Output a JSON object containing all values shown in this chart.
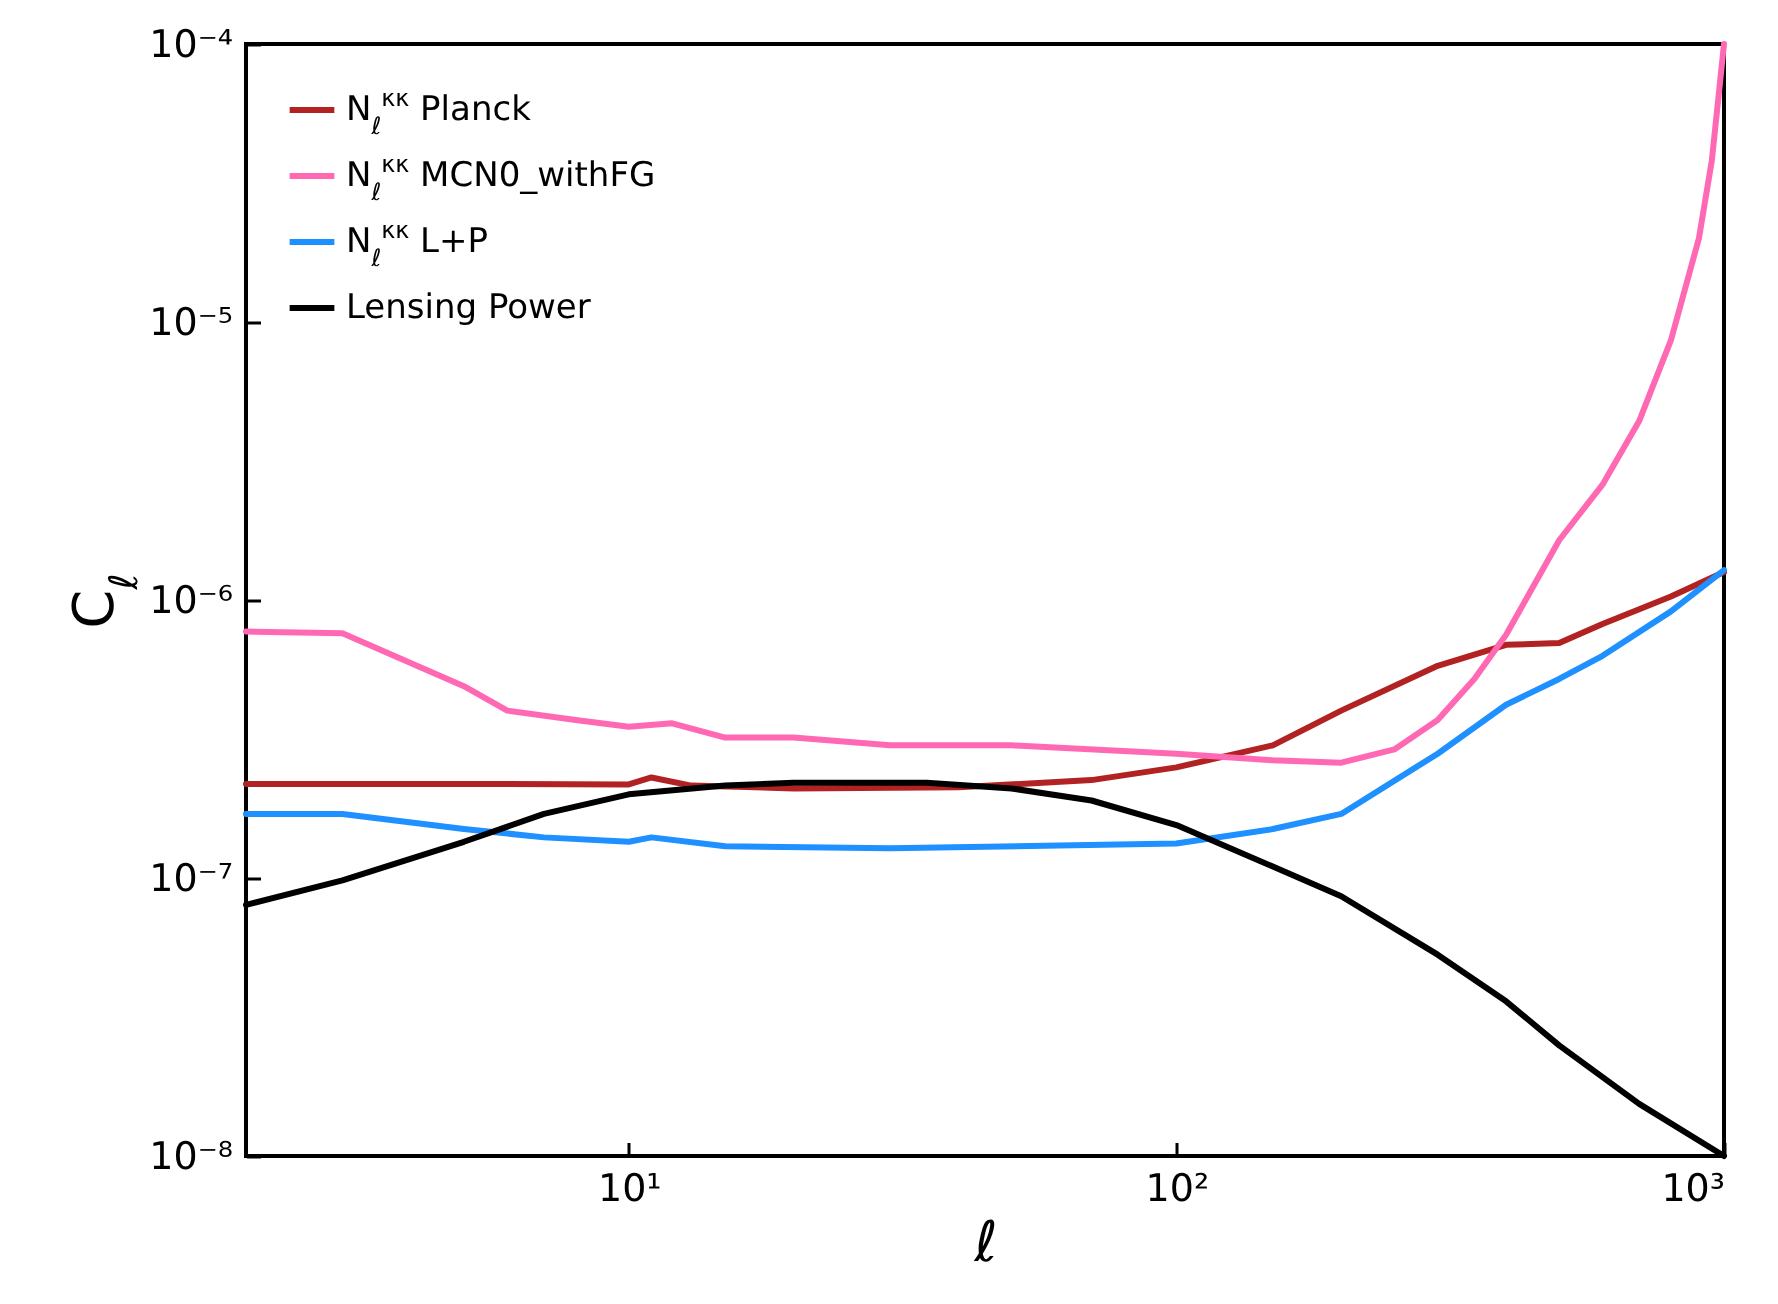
{
  "chart_data": {
    "type": "line",
    "xlabel": "ℓ",
    "ylabel": "C$_{ℓ}$",
    "log": "xy",
    "grid": false,
    "legend": "top left",
    "marker": "none",
    "line_style": "solid",
    "xlim": [
      2,
      1000
    ],
    "ylim": [
      1e-08,
      0.0001
    ],
    "xticks": [
      {
        "value": 10,
        "label": "10¹"
      },
      {
        "value": 100,
        "label": "10²"
      },
      {
        "value": 1000,
        "label": "10³"
      }
    ],
    "yticks": [
      {
        "value": 1e-08,
        "label": "10⁻⁸"
      },
      {
        "value": 1e-07,
        "label": "10⁻⁷"
      },
      {
        "value": 1e-06,
        "label": "10⁻⁶"
      },
      {
        "value": 1e-05,
        "label": "10⁻⁵"
      },
      {
        "value": 0.0001,
        "label": "10⁻⁴"
      }
    ],
    "series": [
      {
        "name": "N$_{ℓ}$$^{κκ}$ Planck",
        "color": "#b22222",
        "x": [
          2,
          5,
          10,
          11,
          13,
          20,
          40,
          70,
          100,
          150,
          200,
          300,
          400,
          500,
          600,
          800,
          1000
        ],
        "values": [
          2.18e-07,
          2.18e-07,
          2.17e-07,
          2.3e-07,
          2.15e-07,
          2.1e-07,
          2.12e-07,
          2.25e-07,
          2.5e-07,
          3e-07,
          4e-07,
          5.8e-07,
          6.9e-07,
          7e-07,
          8.2e-07,
          1.03e-06,
          1.26e-06
        ]
      },
      {
        "name": "N$_{ℓ}$$^{κκ}$ MCN0_withFG",
        "color": "#ff69b4",
        "x": [
          2,
          3,
          5,
          6,
          8,
          10,
          12,
          15,
          20,
          30,
          50,
          100,
          150,
          200,
          250,
          300,
          350,
          400,
          500,
          600,
          700,
          800,
          900,
          950,
          1000
        ],
        "values": [
          7.7e-07,
          7.6e-07,
          4.9e-07,
          4e-07,
          3.7e-07,
          3.5e-07,
          3.6e-07,
          3.2e-07,
          3.2e-07,
          3e-07,
          3e-07,
          2.8e-07,
          2.65e-07,
          2.6e-07,
          2.9e-07,
          3.7e-07,
          5.2e-07,
          7.5e-07,
          1.64e-06,
          2.6e-06,
          4.4e-06,
          8.6e-06,
          2e-05,
          3.8e-05,
          0.0001
        ]
      },
      {
        "name": "N$_{ℓ}$$^{κκ}$ L+P",
        "color": "#1e90ff",
        "x": [
          2,
          3,
          5,
          7,
          10,
          11,
          15,
          30,
          100,
          150,
          200,
          300,
          400,
          500,
          600,
          800,
          1000
        ],
        "values": [
          1.7e-07,
          1.7e-07,
          1.5e-07,
          1.4e-07,
          1.35e-07,
          1.4e-07,
          1.3e-07,
          1.28e-07,
          1.33e-07,
          1.5e-07,
          1.7e-07,
          2.8e-07,
          4.2e-07,
          5.2e-07,
          6.3e-07,
          9.1e-07,
          1.28e-06
        ]
      },
      {
        "name": "Lensing Power",
        "color": "#000000",
        "x": [
          2,
          3,
          5,
          7,
          10,
          15,
          20,
          35,
          50,
          70,
          100,
          150,
          200,
          300,
          400,
          500,
          700,
          1000
        ],
        "values": [
          8e-08,
          9.8e-08,
          1.35e-07,
          1.7e-07,
          2e-07,
          2.15e-07,
          2.2e-07,
          2.2e-07,
          2.1e-07,
          1.9e-07,
          1.55e-07,
          1.1e-07,
          8.6e-08,
          5.3e-08,
          3.6e-08,
          2.5e-08,
          1.54e-08,
          1e-08
        ]
      }
    ]
  }
}
